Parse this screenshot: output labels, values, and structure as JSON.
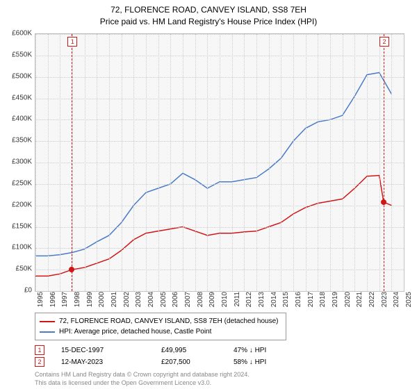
{
  "title_line1": "72, FLORENCE ROAD, CANVEY ISLAND, SS8 7EH",
  "title_line2": "Price paid vs. HM Land Registry's House Price Index (HPI)",
  "chart": {
    "type": "line",
    "background_color": "#f7f7f7",
    "grid_color": "#cccccc",
    "border_color": "#bbbbbb",
    "xlim": [
      1995,
      2025
    ],
    "ylim": [
      0,
      600000
    ],
    "ytick_step": 50000,
    "yticks": [
      "£0",
      "£50K",
      "£100K",
      "£150K",
      "£200K",
      "£250K",
      "£300K",
      "£350K",
      "£400K",
      "£450K",
      "£500K",
      "£550K",
      "£600K"
    ],
    "xticks": [
      "1995",
      "1996",
      "1997",
      "1998",
      "1999",
      "2000",
      "2001",
      "2002",
      "2003",
      "2004",
      "2005",
      "2006",
      "2007",
      "2008",
      "2009",
      "2010",
      "2011",
      "2012",
      "2013",
      "2014",
      "2015",
      "2016",
      "2017",
      "2018",
      "2019",
      "2020",
      "2021",
      "2022",
      "2023",
      "2024",
      "2025"
    ],
    "series": [
      {
        "name": "property",
        "label": "72, FLORENCE ROAD, CANVEY ISLAND, SS8 7EH (detached house)",
        "color": "#d11515",
        "line_width": 1.5,
        "points": [
          [
            1995,
            35000
          ],
          [
            1996,
            35000
          ],
          [
            1997,
            40000
          ],
          [
            1997.96,
            49995
          ],
          [
            1999,
            55000
          ],
          [
            2000,
            65000
          ],
          [
            2001,
            75000
          ],
          [
            2002,
            95000
          ],
          [
            2003,
            120000
          ],
          [
            2004,
            135000
          ],
          [
            2005,
            140000
          ],
          [
            2006,
            145000
          ],
          [
            2007,
            150000
          ],
          [
            2008,
            140000
          ],
          [
            2009,
            130000
          ],
          [
            2010,
            135000
          ],
          [
            2011,
            135000
          ],
          [
            2012,
            138000
          ],
          [
            2013,
            140000
          ],
          [
            2014,
            150000
          ],
          [
            2015,
            160000
          ],
          [
            2016,
            180000
          ],
          [
            2017,
            195000
          ],
          [
            2018,
            205000
          ],
          [
            2019,
            210000
          ],
          [
            2020,
            215000
          ],
          [
            2021,
            240000
          ],
          [
            2022,
            268000
          ],
          [
            2023,
            270000
          ],
          [
            2023.36,
            207500
          ],
          [
            2024,
            200000
          ]
        ]
      },
      {
        "name": "hpi",
        "label": "HPI: Average price, detached house, Castle Point",
        "color": "#4a7bc9",
        "line_width": 1.5,
        "points": [
          [
            1995,
            82000
          ],
          [
            1996,
            82000
          ],
          [
            1997,
            85000
          ],
          [
            1998,
            90000
          ],
          [
            1999,
            98000
          ],
          [
            2000,
            115000
          ],
          [
            2001,
            130000
          ],
          [
            2002,
            160000
          ],
          [
            2003,
            200000
          ],
          [
            2004,
            230000
          ],
          [
            2005,
            240000
          ],
          [
            2006,
            250000
          ],
          [
            2007,
            275000
          ],
          [
            2008,
            260000
          ],
          [
            2009,
            240000
          ],
          [
            2010,
            255000
          ],
          [
            2011,
            255000
          ],
          [
            2012,
            260000
          ],
          [
            2013,
            265000
          ],
          [
            2014,
            285000
          ],
          [
            2015,
            310000
          ],
          [
            2016,
            350000
          ],
          [
            2017,
            380000
          ],
          [
            2018,
            395000
          ],
          [
            2019,
            400000
          ],
          [
            2020,
            410000
          ],
          [
            2021,
            455000
          ],
          [
            2022,
            505000
          ],
          [
            2023,
            510000
          ],
          [
            2024,
            460000
          ]
        ]
      }
    ],
    "markers": [
      {
        "n": "1",
        "x": 1997.96,
        "y": 49995,
        "color": "#d11515",
        "vline": true
      },
      {
        "n": "2",
        "x": 2023.36,
        "y": 207500,
        "color": "#d11515",
        "vline": true
      }
    ]
  },
  "legend": {
    "series1_label": "72, FLORENCE ROAD, CANVEY ISLAND, SS8 7EH (detached house)",
    "series1_color": "#d11515",
    "series2_label": "HPI: Average price, detached house, Castle Point",
    "series2_color": "#4a7bc9"
  },
  "annotations": [
    {
      "n": "1",
      "color": "#d11515",
      "date": "15-DEC-1997",
      "price": "£49,995",
      "pct": "47% ↓ HPI"
    },
    {
      "n": "2",
      "color": "#d11515",
      "date": "12-MAY-2023",
      "price": "£207,500",
      "pct": "58% ↓ HPI"
    }
  ],
  "footnote_line1": "Contains HM Land Registry data © Crown copyright and database right 2024.",
  "footnote_line2": "This data is licensed under the Open Government Licence v3.0."
}
